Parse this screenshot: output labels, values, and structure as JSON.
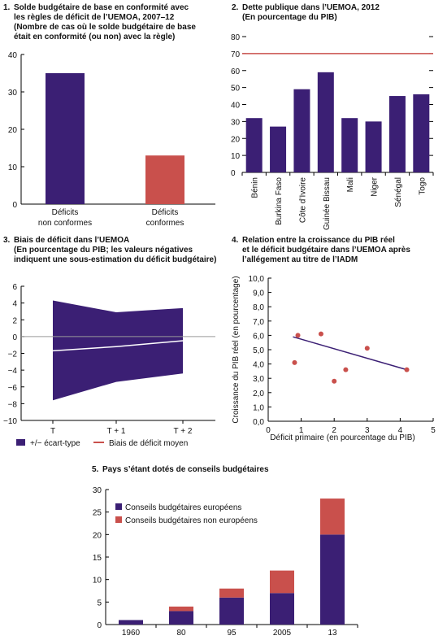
{
  "colors": {
    "purple": "#3b1f74",
    "red": "#c9504c",
    "axis": "#000000",
    "zero": "#9a9a9a"
  },
  "chart_data": [
    {
      "panel": "1.",
      "type": "bar",
      "title_lines": [
        "Solde budgétaire de base en conformité avec",
        "les règles de déficit de l’UEMOA, 2007–12",
        "(Nombre de cas où le solde budgétaire de base",
        "était en conformité (ou non) avec la règle)"
      ],
      "categories": [
        [
          "Déficits",
          "non conformes"
        ],
        [
          "Déficits",
          "conformes"
        ]
      ],
      "values": [
        35,
        13
      ],
      "bar_colors": [
        "purple",
        "red"
      ],
      "ylim": [
        0,
        40
      ],
      "yticks": [
        "0",
        "10",
        "20",
        "30",
        "40"
      ]
    },
    {
      "panel": "2.",
      "type": "bar",
      "title_lines": [
        "Dette publique dans l’UEMOA, 2012",
        "(En pourcentage du PIB)"
      ],
      "categories": [
        "Bénin",
        "Burkina Faso",
        "Côte d’Ivoire",
        "Guinée Bissau",
        "Mali",
        "Niger",
        "Sénégal",
        "Togo"
      ],
      "values": [
        32,
        27,
        49,
        59,
        32,
        30,
        45,
        46
      ],
      "reference_line": 70,
      "ylim": [
        0,
        80
      ],
      "yticks": [
        "0",
        "10",
        "20",
        "30",
        "40",
        "50",
        "60",
        "70",
        "80"
      ]
    },
    {
      "panel": "3.",
      "type": "area",
      "title_lines": [
        "Biais de déficit dans l’UEMOA",
        "(En pourcentage du PIB; les valeurs négatives",
        "indiquent une sous-estimation du déficit budgétaire)"
      ],
      "categories": [
        "T",
        "T + 1",
        "T + 2"
      ],
      "band_upper": [
        4.3,
        2.9,
        3.4
      ],
      "band_lower": [
        -7.6,
        -5.4,
        -4.4
      ],
      "mean": [
        -1.7,
        -1.2,
        -0.5
      ],
      "ylim": [
        -10,
        6
      ],
      "yticks": [
        "−10",
        "−8",
        "−6",
        "−4",
        "−2",
        "0",
        "2",
        "4",
        "6"
      ],
      "legend": [
        "+/− écart-type",
        "Biais de déficit moyen"
      ]
    },
    {
      "panel": "4.",
      "type": "scatter",
      "title_lines": [
        "Relation entre la croissance du PIB réel",
        "et le déficit budgétaire dans l’UEMOA après",
        "l’allégement au titre de l’IADM"
      ],
      "points": [
        [
          0.8,
          4.1
        ],
        [
          0.9,
          6.0
        ],
        [
          1.6,
          6.1
        ],
        [
          2.0,
          2.8
        ],
        [
          2.35,
          3.6
        ],
        [
          3.0,
          5.1
        ],
        [
          4.2,
          3.6
        ]
      ],
      "trendline": [
        [
          0.75,
          5.9
        ],
        [
          4.2,
          3.6
        ]
      ],
      "xlim": [
        0,
        5
      ],
      "ylim": [
        0,
        10
      ],
      "xticks": [
        "0",
        "1",
        "2",
        "3",
        "4",
        "5"
      ],
      "yticks": [
        "0,0",
        "1,0",
        "2,0",
        "3,0",
        "4,0",
        "5,0",
        "6,0",
        "7,0",
        "8,0",
        "9,0",
        "10,0"
      ],
      "xlabel": "Déficit primaire (en pourcentage du PIB)",
      "ylabel": "Croissance du PIB réel (en pourcentage)"
    },
    {
      "panel": "5.",
      "type": "bar",
      "stacked": true,
      "title_lines": [
        "Pays s’étant dotés de conseils budgétaires"
      ],
      "categories": [
        "1960",
        "80",
        "95",
        "2005",
        "13"
      ],
      "series": [
        {
          "name": "Conseils budgétaires européens",
          "values": [
            1,
            3,
            6,
            7,
            20
          ]
        },
        {
          "name": "Conseils budgétaires non européens",
          "values": [
            0,
            1,
            2,
            5,
            8
          ]
        }
      ],
      "ylim": [
        0,
        30
      ],
      "yticks": [
        "0",
        "5",
        "10",
        "15",
        "20",
        "25",
        "30"
      ]
    }
  ]
}
